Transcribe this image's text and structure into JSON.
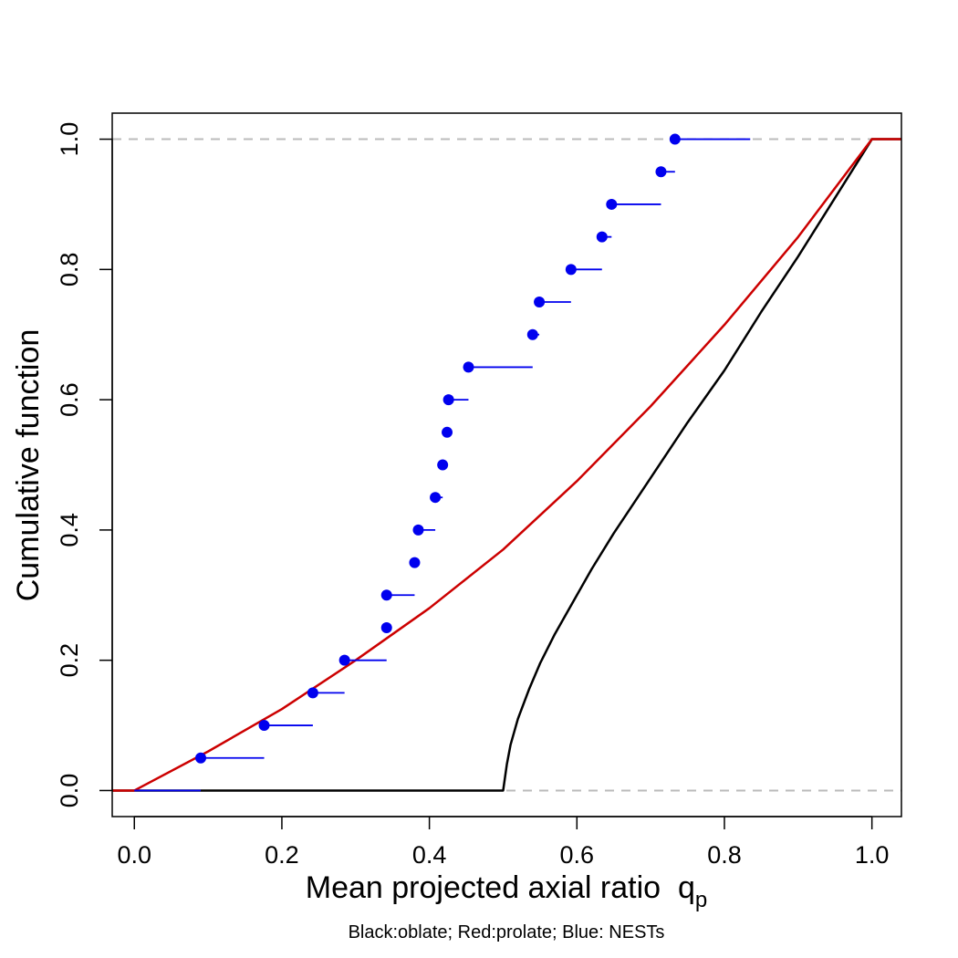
{
  "chart_data": {
    "type": "line",
    "title": "",
    "xlabel": "Mean projected axial ratio  q",
    "xlabel_subscript": "p",
    "ylabel": "Cumulative function",
    "caption": "Black:oblate; Red:prolate; Blue: NESTs",
    "xlim": [
      -0.03,
      1.04
    ],
    "ylim": [
      -0.04,
      1.04
    ],
    "xticks": [
      0.0,
      0.2,
      0.4,
      0.6,
      0.8,
      1.0
    ],
    "xtick_labels": [
      "0.0",
      "0.2",
      "0.4",
      "0.6",
      "0.8",
      "1.0"
    ],
    "yticks": [
      0.0,
      0.2,
      0.4,
      0.6,
      0.8,
      1.0
    ],
    "ytick_labels": [
      "0.0",
      "0.2",
      "0.4",
      "0.6",
      "0.8",
      "1.0"
    ],
    "reference_lines": [
      {
        "y": 0.0,
        "style": "dashed",
        "color": "#bbbbbb"
      },
      {
        "y": 1.0,
        "style": "dashed",
        "color": "#bbbbbb"
      }
    ],
    "series": [
      {
        "name": "oblate",
        "legend": "Black:oblate",
        "color": "#000000",
        "kind": "curve",
        "x": [
          -0.03,
          0.5,
          0.505,
          0.51,
          0.52,
          0.535,
          0.55,
          0.57,
          0.6,
          0.62,
          0.65,
          0.7,
          0.75,
          0.8,
          0.85,
          0.9,
          0.95,
          1.0,
          1.04
        ],
        "y": [
          0.0,
          0.0,
          0.04,
          0.07,
          0.11,
          0.155,
          0.195,
          0.24,
          0.3,
          0.34,
          0.395,
          0.48,
          0.565,
          0.645,
          0.735,
          0.82,
          0.91,
          1.0,
          1.0
        ]
      },
      {
        "name": "prolate",
        "legend": "Red:prolate",
        "color": "#cc0000",
        "kind": "curve",
        "x": [
          -0.03,
          0.0,
          0.1,
          0.2,
          0.3,
          0.4,
          0.5,
          0.6,
          0.7,
          0.8,
          0.9,
          1.0,
          1.04
        ],
        "y": [
          0.0,
          0.0,
          0.06,
          0.125,
          0.2,
          0.28,
          0.37,
          0.475,
          0.59,
          0.715,
          0.85,
          1.0,
          1.0
        ]
      },
      {
        "name": "NESTs",
        "legend": "Blue: NESTs",
        "color": "#0000ee",
        "kind": "step_points",
        "points": [
          {
            "x": 0.0,
            "y": 0.0,
            "x_end": 0.09,
            "show_point": false
          },
          {
            "x": 0.09,
            "y": 0.05,
            "x_end": 0.176
          },
          {
            "x": 0.176,
            "y": 0.1,
            "x_end": 0.242
          },
          {
            "x": 0.242,
            "y": 0.15,
            "x_end": 0.285
          },
          {
            "x": 0.285,
            "y": 0.2,
            "x_end": 0.342
          },
          {
            "x": 0.342,
            "y": 0.25,
            "x_end": 0.342
          },
          {
            "x": 0.342,
            "y": 0.3,
            "x_end": 0.38
          },
          {
            "x": 0.38,
            "y": 0.35,
            "x_end": 0.385
          },
          {
            "x": 0.385,
            "y": 0.4,
            "x_end": 0.408
          },
          {
            "x": 0.408,
            "y": 0.45,
            "x_end": 0.418
          },
          {
            "x": 0.418,
            "y": 0.5,
            "x_end": 0.424
          },
          {
            "x": 0.424,
            "y": 0.55,
            "x_end": 0.426
          },
          {
            "x": 0.426,
            "y": 0.6,
            "x_end": 0.453
          },
          {
            "x": 0.453,
            "y": 0.65,
            "x_end": 0.54
          },
          {
            "x": 0.54,
            "y": 0.7,
            "x_end": 0.549
          },
          {
            "x": 0.549,
            "y": 0.75,
            "x_end": 0.592
          },
          {
            "x": 0.592,
            "y": 0.8,
            "x_end": 0.634
          },
          {
            "x": 0.634,
            "y": 0.85,
            "x_end": 0.647
          },
          {
            "x": 0.647,
            "y": 0.9,
            "x_end": 0.714
          },
          {
            "x": 0.714,
            "y": 0.95,
            "x_end": 0.733
          },
          {
            "x": 0.733,
            "y": 1.0,
            "x_end": 0.835
          }
        ]
      }
    ]
  }
}
